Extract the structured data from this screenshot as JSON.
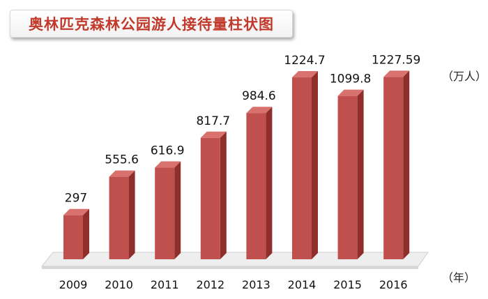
{
  "chart_data": {
    "type": "bar",
    "title": "奥林匹克森林公园游人接待量柱状图",
    "ylabel": "（万人）",
    "xlabel": "（年）",
    "categories": [
      "2009",
      "2010",
      "2011",
      "2012",
      "2013",
      "2014",
      "2015",
      "2016"
    ],
    "values": [
      297,
      555.6,
      616.9,
      817.7,
      984.6,
      1224.7,
      1099.8,
      1227.59
    ],
    "value_labels": [
      "297",
      "555.6",
      "616.9",
      "817.7",
      "984.6",
      "1224.7",
      "1099.8",
      "1227.59"
    ],
    "ylim": [
      0,
      1300
    ],
    "grid": false,
    "legend": "none",
    "colors": {
      "bar_front": "#c0504d",
      "bar_side": "#8e2f2c",
      "bar_top": "#d9716e",
      "title_text": "#c0392b",
      "floor": "#eeeeee"
    }
  }
}
